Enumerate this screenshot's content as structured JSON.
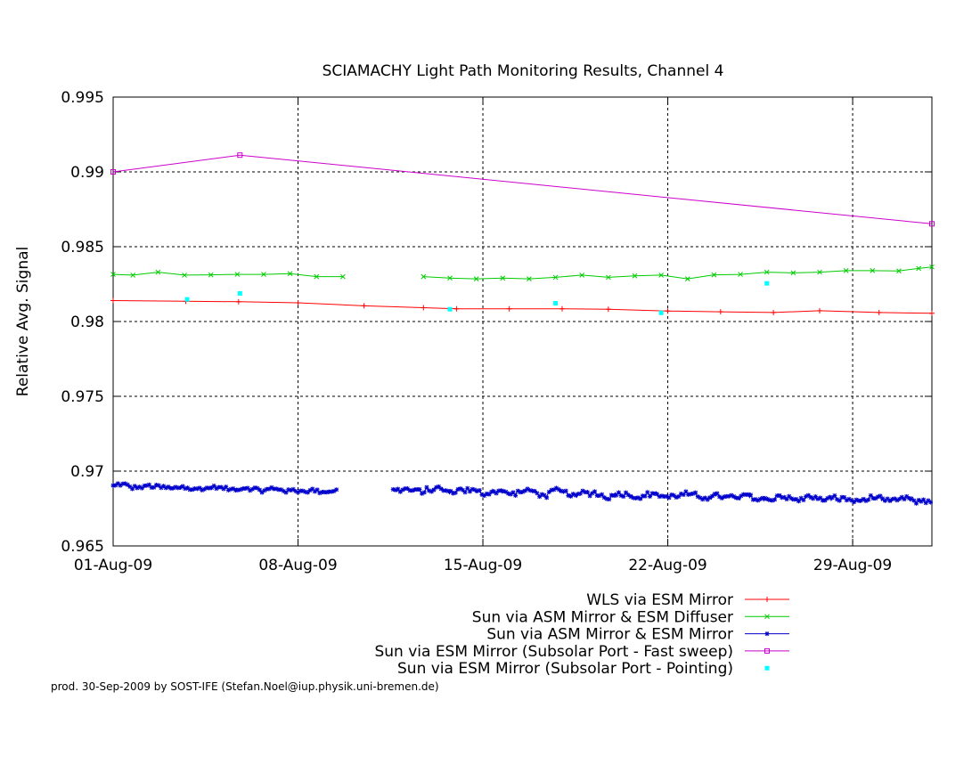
{
  "footer": "prod. 30-Sep-2009 by SOST-IFE (Stefan.Noel@iup.physik.uni-bremen.de)",
  "chart_data": {
    "type": "line",
    "title": "SCIAMACHY Light Path Monitoring Results, Channel 4",
    "ylabel": "Relative Avg. Signal",
    "xlabel": "",
    "xlim": [
      0,
      31
    ],
    "ylim": [
      0.965,
      0.995
    ],
    "grid": true,
    "legend_position": "bottom-right",
    "x_ticks": [
      {
        "value": 0,
        "label": "01-Aug-09"
      },
      {
        "value": 7,
        "label": "08-Aug-09"
      },
      {
        "value": 14,
        "label": "15-Aug-09"
      },
      {
        "value": 21,
        "label": "22-Aug-09"
      },
      {
        "value": 28,
        "label": "29-Aug-09"
      }
    ],
    "y_ticks": [
      {
        "value": 0.965,
        "label": "0.965"
      },
      {
        "value": 0.97,
        "label": "0.97"
      },
      {
        "value": 0.975,
        "label": "0.975"
      },
      {
        "value": 0.98,
        "label": "0.98"
      },
      {
        "value": 0.985,
        "label": "0.985"
      },
      {
        "value": 0.99,
        "label": "0.99"
      },
      {
        "value": 0.995,
        "label": "0.995"
      }
    ],
    "series": [
      {
        "name": "WLS via ESM Mirror",
        "color": "#ff0000",
        "style": "line-plus",
        "points": [
          [
            0,
            0.9814
          ],
          [
            2.75,
            0.98135
          ],
          [
            4.75,
            0.98132
          ],
          [
            7,
            0.98125
          ],
          [
            9.5,
            0.98105
          ],
          [
            11.75,
            0.98092
          ],
          [
            13,
            0.98085
          ],
          [
            15,
            0.98085
          ],
          [
            17,
            0.98085
          ],
          [
            18.75,
            0.98082
          ],
          [
            21,
            0.9807
          ],
          [
            23,
            0.98065
          ],
          [
            25,
            0.9806
          ],
          [
            26.75,
            0.98072
          ],
          [
            29,
            0.9806
          ],
          [
            31,
            0.98055
          ]
        ]
      },
      {
        "name": "Sun via ASM Mirror & ESM Diffuser",
        "color": "#00cc00",
        "style": "line-x",
        "points": [
          [
            0,
            0.98315
          ],
          [
            0.75,
            0.9831
          ],
          [
            1.7,
            0.9833
          ],
          [
            2.7,
            0.9831
          ],
          [
            3.7,
            0.98312
          ],
          [
            4.7,
            0.98315
          ],
          [
            5.7,
            0.98315
          ],
          [
            6.7,
            0.9832
          ],
          [
            7.7,
            0.983
          ],
          [
            8.7,
            0.983
          ],
          null,
          [
            11.75,
            0.983
          ],
          [
            12.75,
            0.9829
          ],
          [
            13.75,
            0.98285
          ],
          [
            14.75,
            0.9829
          ],
          [
            15.75,
            0.98285
          ],
          [
            16.75,
            0.98295
          ],
          [
            17.75,
            0.9831
          ],
          [
            18.75,
            0.98295
          ],
          [
            19.75,
            0.98305
          ],
          [
            20.75,
            0.9831
          ],
          [
            21.75,
            0.98285
          ],
          [
            22.75,
            0.98312
          ],
          [
            23.75,
            0.98315
          ],
          [
            24.75,
            0.9833
          ],
          [
            25.75,
            0.98325
          ],
          [
            26.75,
            0.9833
          ],
          [
            27.75,
            0.9834
          ],
          [
            28.75,
            0.9834
          ],
          [
            29.75,
            0.98338
          ],
          [
            30.5,
            0.98355
          ],
          [
            31,
            0.98365
          ]
        ]
      },
      {
        "name": "Sun via ASM Mirror & ESM Mirror",
        "color": "#0000cc",
        "style": "noisy-star",
        "segments": [
          {
            "start": 0,
            "end": 8.5,
            "level_start": 0.969,
            "level_end": 0.96865,
            "noise": 0.00012
          },
          {
            "start": 10.6,
            "end": 31,
            "level_start": 0.96875,
            "level_end": 0.968,
            "noise": 0.00015
          }
        ]
      },
      {
        "name": "Sun via ESM Mirror (Subsolar Port - Fast sweep)",
        "color": "#cc00cc",
        "style": "line-square",
        "points": [
          [
            0,
            0.99
          ],
          [
            4.8,
            0.99112
          ],
          [
            31,
            0.98653
          ]
        ]
      },
      {
        "name": "Sun via ESM Mirror (Subsolar Port - Pointing)",
        "color": "#00ffff",
        "style": "points",
        "points": [
          [
            2.8,
            0.98148
          ],
          [
            4.8,
            0.98188
          ],
          [
            12.75,
            0.98082
          ],
          [
            16.75,
            0.98122
          ],
          [
            20.75,
            0.98058
          ],
          [
            24.75,
            0.98255
          ]
        ]
      }
    ]
  }
}
